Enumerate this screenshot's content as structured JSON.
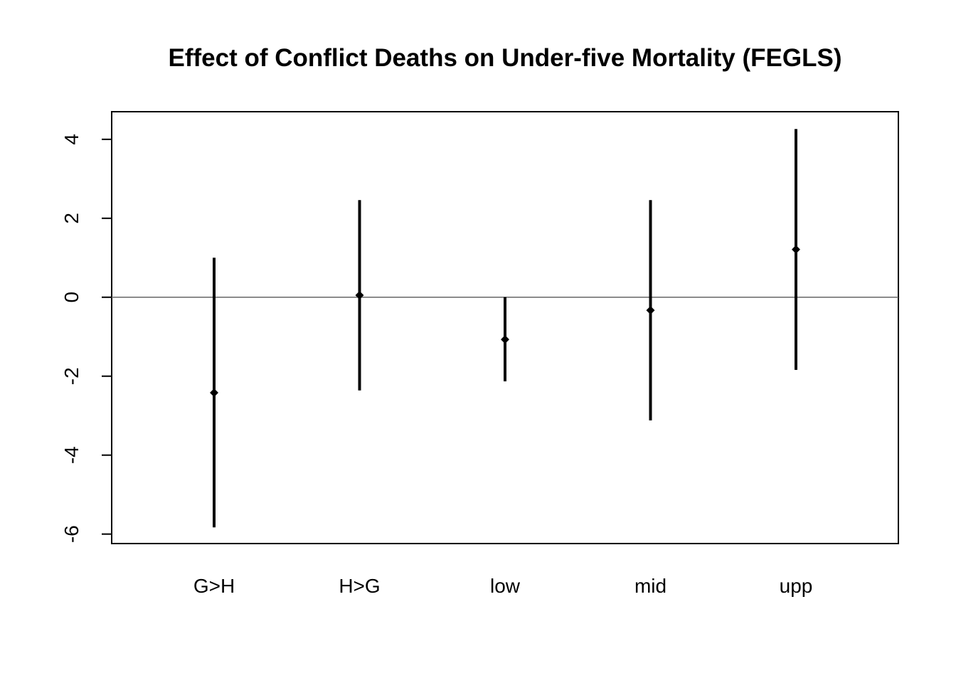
{
  "chart_data": {
    "type": "errorbar",
    "title": "Effect of Conflict Deaths on Under-five Mortality (FEGLS)",
    "xlabel": "",
    "ylabel": "",
    "categories": [
      "G>H",
      "H>G",
      "low",
      "mid",
      "upp"
    ],
    "estimates": [
      -2.42,
      0.05,
      -1.07,
      -0.33,
      1.21
    ],
    "lower": [
      -5.83,
      -2.36,
      -2.13,
      -3.12,
      -1.84
    ],
    "upper": [
      1.0,
      2.46,
      0.0,
      2.46,
      4.26
    ],
    "ylim": [
      -6.24,
      4.7
    ],
    "yticks": [
      -6,
      -4,
      -2,
      0,
      2,
      4
    ],
    "reference_line": 0,
    "grid": false,
    "legend": "none",
    "colors": {
      "marks": "#000000",
      "reference_line": "#666666"
    }
  }
}
